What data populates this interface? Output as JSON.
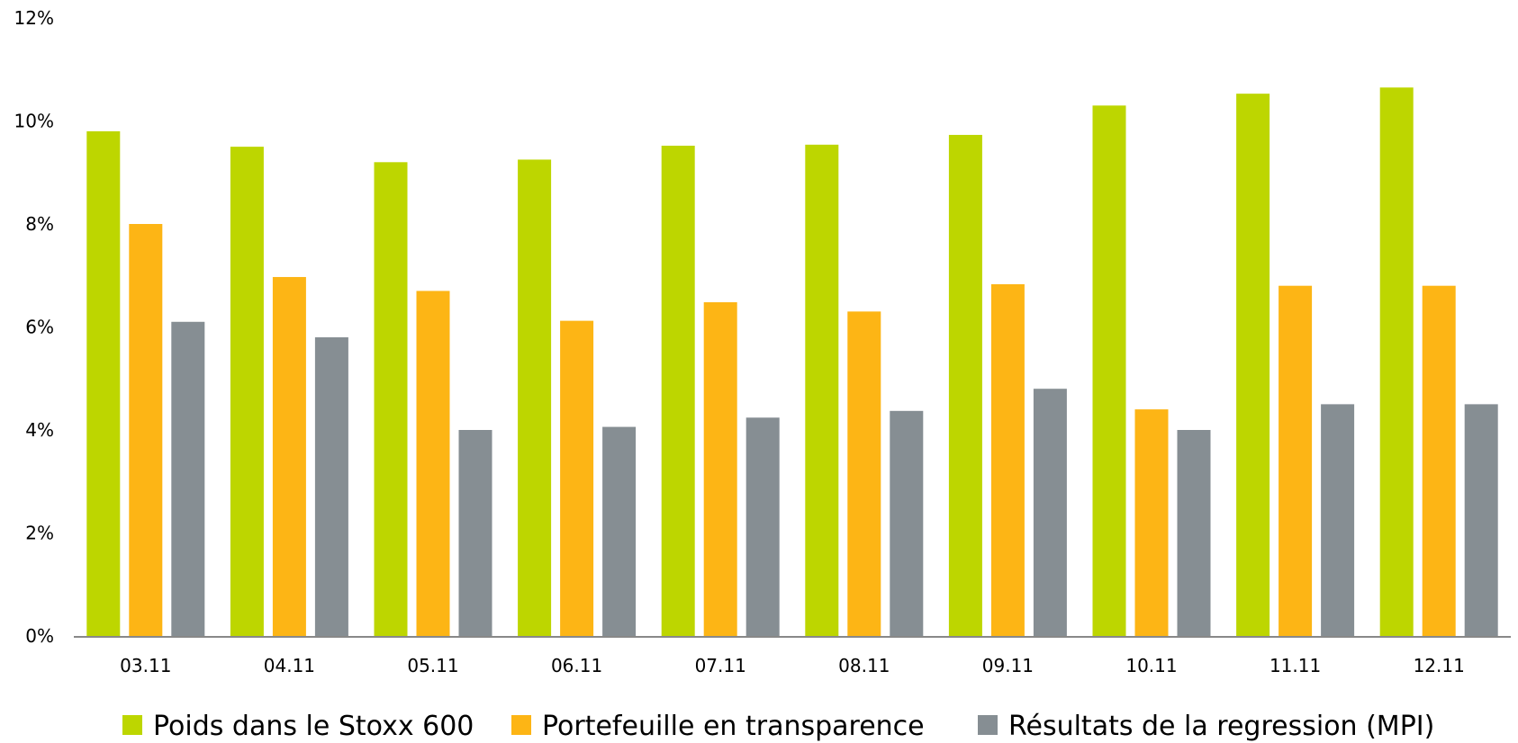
{
  "chart_data": {
    "type": "bar",
    "categories": [
      "03.11",
      "04.11",
      "05.11",
      "06.11",
      "07.11",
      "08.11",
      "09.11",
      "10.11",
      "11.11",
      "12.11"
    ],
    "series": [
      {
        "name": "Poids dans le Stoxx 600",
        "color": "#bdd600",
        "values": [
          9.8,
          9.5,
          9.2,
          9.25,
          9.52,
          9.54,
          9.73,
          10.3,
          10.53,
          10.65
        ]
      },
      {
        "name": "Portefeuille en transparence",
        "color": "#fdb515",
        "values": [
          8.0,
          6.97,
          6.7,
          6.12,
          6.48,
          6.3,
          6.83,
          4.4,
          6.8,
          6.8
        ]
      },
      {
        "name": "Résultats de la regression (MPI)",
        "color": "#868e93",
        "values": [
          6.1,
          5.8,
          4.0,
          4.06,
          4.24,
          4.37,
          4.8,
          4.0,
          4.5,
          4.5
        ]
      }
    ],
    "y_ticks": [
      "0%",
      "2%",
      "4%",
      "6%",
      "8%",
      "10%",
      "12%"
    ],
    "ylim": [
      0,
      12
    ],
    "grid": false,
    "legend_position": "bottom"
  }
}
